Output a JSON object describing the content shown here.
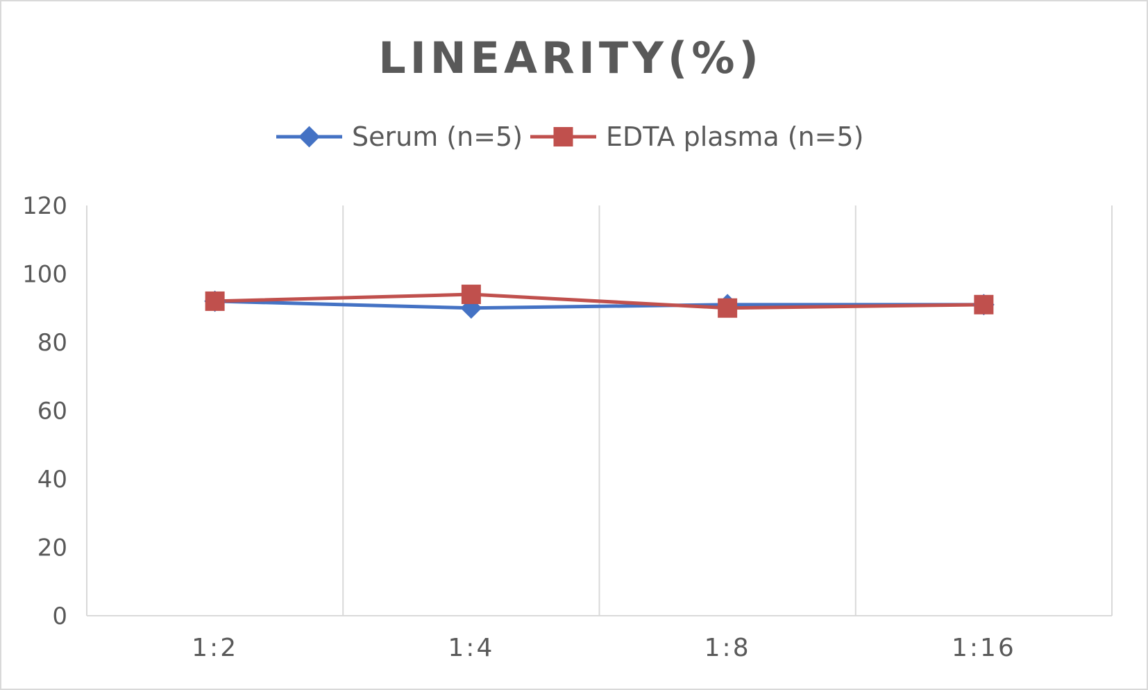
{
  "chart_data": {
    "type": "line",
    "title": "LINEARITY(%)",
    "xlabel": "",
    "ylabel": "",
    "categories": [
      "1:2",
      "1:4",
      "1:8",
      "1:16"
    ],
    "ylim": [
      0,
      120
    ],
    "yticks": [
      0,
      20,
      40,
      60,
      80,
      100,
      120
    ],
    "grid": "vertical",
    "legend_position": "top",
    "series": [
      {
        "name": "Serum (n=5)",
        "values": [
          92,
          90,
          91,
          91
        ],
        "color": "#4472C4",
        "marker": "diamond"
      },
      {
        "name": "EDTA plasma (n=5)",
        "values": [
          92,
          94,
          90,
          91
        ],
        "color": "#C0504D",
        "marker": "square"
      }
    ]
  }
}
